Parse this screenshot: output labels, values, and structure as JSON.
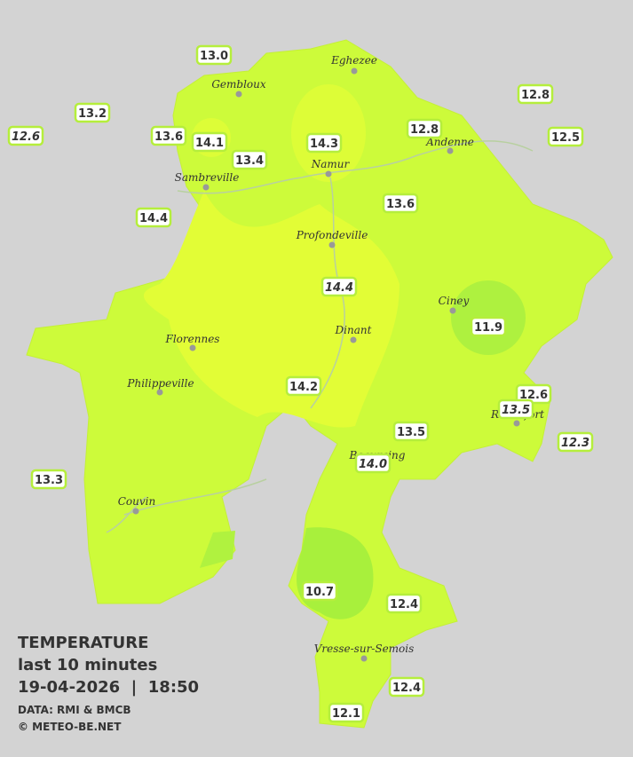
{
  "title": {
    "line1": "TEMPERATURE",
    "line2": "last 10 minutes",
    "line3": "19-04-2026  |  18:50",
    "line4": "DATA: RMI & BMCB",
    "line5": "© METEO-BE.NET"
  },
  "cities": [
    "Eghezee",
    "Gembloux",
    "Andenne",
    "Namur",
    "Sambreville",
    "Profondeville",
    "Ciney",
    "Dinant",
    "Florennes",
    "Philippeville",
    "Rochefort",
    "Beauraing",
    "Couvin",
    "Vresse-sur-Semois"
  ],
  "stations": [
    "13.0",
    "13.2",
    "12.6",
    "13.6",
    "14.1",
    "14.3",
    "13.4",
    "12.8",
    "12.8",
    "12.5",
    "14.4",
    "13.6",
    "14.4",
    "11.9",
    "14.2",
    "12.6",
    "13.5",
    "12.3",
    "13.5",
    "14.0",
    "13.3",
    "10.7",
    "12.4",
    "12.4",
    "12.1"
  ]
}
